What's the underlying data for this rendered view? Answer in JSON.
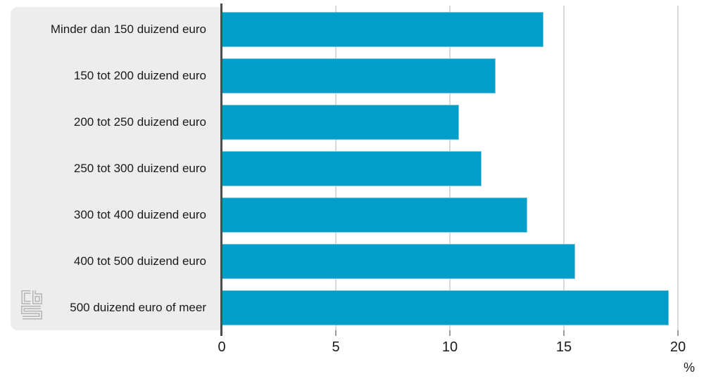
{
  "chart_data": {
    "type": "bar",
    "orientation": "horizontal",
    "categories": [
      "Minder dan 150 duizend euro",
      "150 tot 200 duizend euro",
      "200 tot 250 duizend euro",
      "250 tot 300 duizend euro",
      "300 tot 400 duizend euro",
      "400 tot 500 duizend euro",
      "500 duizend euro of meer"
    ],
    "values": [
      14.1,
      12.0,
      10.4,
      11.4,
      13.4,
      15.5,
      19.6
    ],
    "xlabel": "%",
    "x_ticks": [
      0,
      5,
      10,
      15,
      20
    ],
    "xlim": [
      0,
      20
    ],
    "grid": true,
    "legend": false,
    "title": ""
  },
  "branding": {
    "logo_name": "cbs-logo"
  },
  "colors": {
    "bar": "#009ec8",
    "panel_background": "#ededed",
    "axis_line": "#4d4d4d",
    "gridline": "#d9d9d9",
    "text": "#1a1a1a",
    "logo": "#b5b5b5"
  }
}
